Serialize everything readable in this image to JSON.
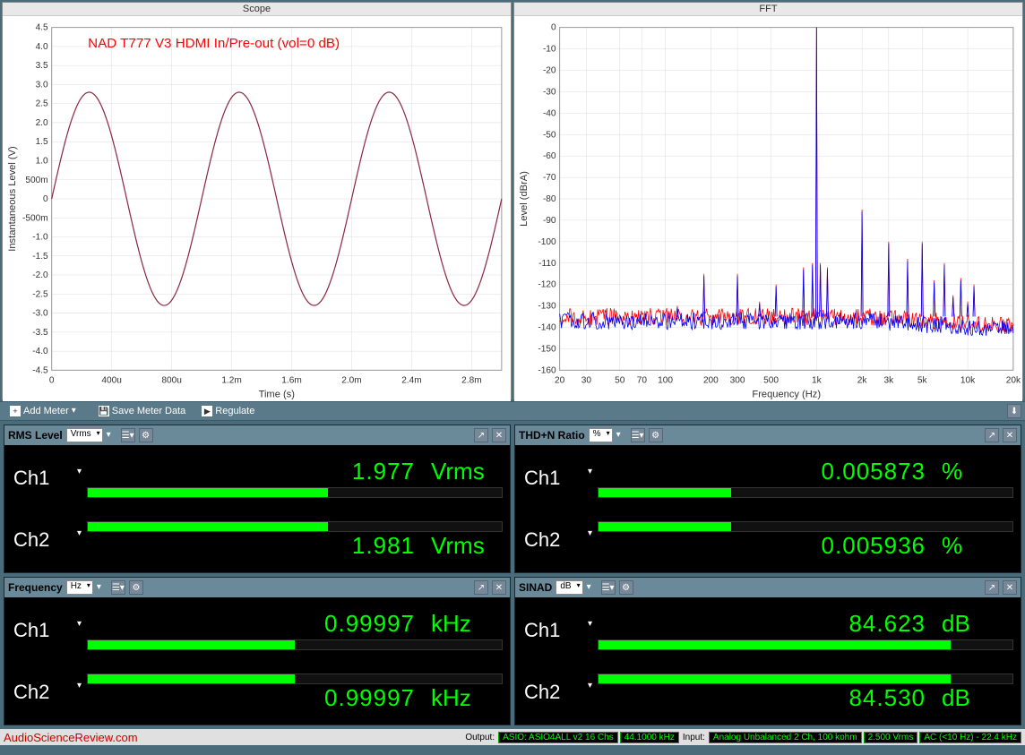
{
  "charts": {
    "scope": {
      "title": "Scope",
      "annotation": "NAD T777 V3 HDMI In/Pre-out (vol=0 dB)",
      "annotation_color": "#ff0000",
      "xlabel": "Time (s)",
      "ylabel": "Instantaneous Level (V)",
      "xlim": [
        0,
        0.003
      ],
      "ylim": [
        -4.5,
        4.5
      ],
      "xticks": [
        "0",
        "400u",
        "800u",
        "1.2m",
        "1.6m",
        "2.0m",
        "2.4m",
        "2.8m"
      ],
      "yticks": [
        "-4.5",
        "-4.0",
        "-3.5",
        "-3.0",
        "-2.5",
        "-2.0",
        "-1.5",
        "-1.0",
        "-500m",
        "0",
        "500m",
        "1.0",
        "1.5",
        "2.0",
        "2.5",
        "3.0",
        "3.5",
        "4.0",
        "4.5"
      ],
      "line_color": "#8b2942",
      "amplitude": 2.8,
      "frequency_hz": 1000,
      "grid_color": "#dddddd",
      "background_color": "#ffffff"
    },
    "fft": {
      "title": "FFT",
      "xlabel": "Frequency (Hz)",
      "ylabel": "Level (dBrA)",
      "xlim": [
        20,
        20000
      ],
      "ylim": [
        -160,
        0
      ],
      "xticks": [
        "20",
        "30",
        "50",
        "70",
        "100",
        "200",
        "300",
        "500",
        "1k",
        "2k",
        "3k",
        "5k",
        "10k",
        "20k"
      ],
      "ytick_step": 10,
      "series_colors": [
        "#ff0000",
        "#0000ff"
      ],
      "noise_floor": -135,
      "fundamental_hz": 1000,
      "fundamental_level": 0,
      "harmonics": [
        {
          "hz": 60,
          "lvl": -135
        },
        {
          "hz": 120,
          "lvl": -130
        },
        {
          "hz": 180,
          "lvl": -115
        },
        {
          "hz": 300,
          "lvl": -115
        },
        {
          "hz": 420,
          "lvl": -128
        },
        {
          "hz": 540,
          "lvl": -120
        },
        {
          "hz": 820,
          "lvl": -112
        },
        {
          "hz": 940,
          "lvl": -110
        },
        {
          "hz": 1060,
          "lvl": -110
        },
        {
          "hz": 1180,
          "lvl": -112
        },
        {
          "hz": 2000,
          "lvl": -85
        },
        {
          "hz": 3000,
          "lvl": -100
        },
        {
          "hz": 4000,
          "lvl": -108
        },
        {
          "hz": 5000,
          "lvl": -100
        },
        {
          "hz": 6000,
          "lvl": -118
        },
        {
          "hz": 7000,
          "lvl": -110
        },
        {
          "hz": 8000,
          "lvl": -125
        },
        {
          "hz": 9000,
          "lvl": -117
        },
        {
          "hz": 10000,
          "lvl": -128
        },
        {
          "hz": 11000,
          "lvl": -120
        }
      ],
      "grid_color": "#dddddd",
      "background_color": "#ffffff"
    }
  },
  "toolbar": {
    "add_meter": "Add Meter",
    "save_meter": "Save Meter Data",
    "regulate": "Regulate"
  },
  "meters": {
    "rms": {
      "title": "RMS Level",
      "unit_sel": "Vrms",
      "ch1": {
        "label": "Ch1",
        "value": "1.977",
        "unit": "Vrms",
        "bar_pct": 58
      },
      "ch2": {
        "label": "Ch2",
        "value": "1.981",
        "unit": "Vrms",
        "bar_pct": 58
      }
    },
    "thdn": {
      "title": "THD+N Ratio",
      "unit_sel": "%",
      "ch1": {
        "label": "Ch1",
        "value": "0.005873",
        "unit": "%",
        "bar_pct": 32
      },
      "ch2": {
        "label": "Ch2",
        "value": "0.005936",
        "unit": "%",
        "bar_pct": 32
      }
    },
    "freq": {
      "title": "Frequency",
      "unit_sel": "Hz",
      "ch1": {
        "label": "Ch1",
        "value": "0.99997",
        "unit": "kHz",
        "bar_pct": 50
      },
      "ch2": {
        "label": "Ch2",
        "value": "0.99997",
        "unit": "kHz",
        "bar_pct": 50
      }
    },
    "sinad": {
      "title": "SINAD",
      "unit_sel": "dB",
      "ch1": {
        "label": "Ch1",
        "value": "84.623",
        "unit": "dB",
        "bar_pct": 85
      },
      "ch2": {
        "label": "Ch2",
        "value": "84.530",
        "unit": "dB",
        "bar_pct": 85
      }
    }
  },
  "footer": {
    "brand": "AudioScienceReview.com",
    "output_label": "Output:",
    "output_device": "ASIO: ASIO4ALL v2 16 Chs",
    "output_rate": "44.1000 kHz",
    "input_label": "Input:",
    "input_device": "Analog Unbalanced 2 Ch, 100 kohm",
    "input_range": "2.500 Vrms",
    "input_bw": "AC (<10 Hz) - 22.4 kHz"
  },
  "colors": {
    "meter_value": "#00ff00",
    "meter_bg": "#000000",
    "panel_bg": "#4a6b7a"
  }
}
